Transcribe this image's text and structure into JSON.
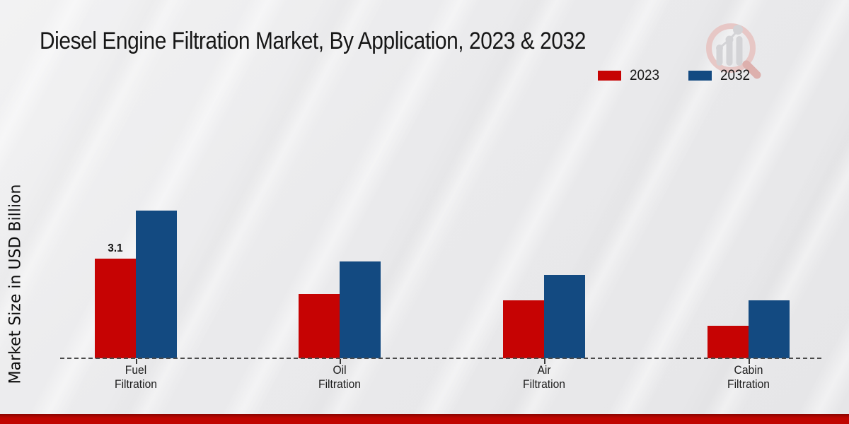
{
  "page": {
    "title": "Diesel Engine Filtration Market, By Application, 2023 & 2032",
    "footer_bar_color": "#c00500",
    "background_color": "#e9e9eb",
    "brand_logo_icon": "magnifier-bar-chart-watermark"
  },
  "legend": {
    "items": [
      {
        "label": "2023",
        "color": "#c60303"
      },
      {
        "label": "2032",
        "color": "#134a81"
      }
    ]
  },
  "chart_data": {
    "type": "bar",
    "title": "Diesel Engine Filtration Market, By Application, 2023 & 2032",
    "ylabel": "Market Size in USD Billion",
    "xlabel": "",
    "categories": [
      "Fuel Filtration",
      "Oil Filtration",
      "Air Filtration",
      "Cabin Filtration"
    ],
    "series": [
      {
        "name": "2023",
        "color": "#c60303",
        "values": [
          3.1,
          2.0,
          1.8,
          1.0
        ]
      },
      {
        "name": "2032",
        "color": "#134a81",
        "values": [
          4.6,
          3.0,
          2.6,
          1.8
        ]
      }
    ],
    "data_labels": [
      {
        "series": "2023",
        "category": "Fuel Filtration",
        "text": "3.1"
      }
    ],
    "ylim": [
      0,
      5
    ],
    "grid": false,
    "y_axis_ticks_visible": false,
    "legend_position": "top-right",
    "baseline_style": "dashed"
  }
}
